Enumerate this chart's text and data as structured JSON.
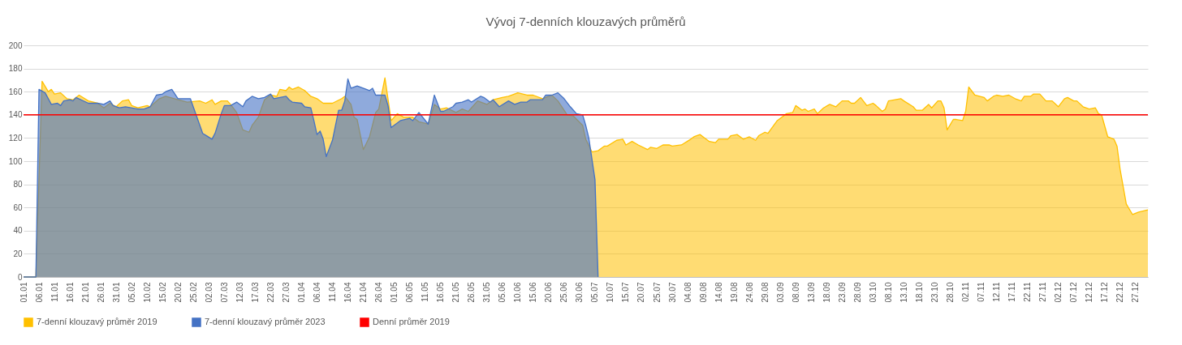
{
  "chart_data": {
    "type": "area",
    "title": "Vývoj 7-denních klouzavých průměrů",
    "xlim": [
      "--01-01",
      "--12-31"
    ],
    "xticks": [
      {
        "value": "--01-01",
        "label": "01.01"
      },
      {
        "value": "--01-06",
        "label": "06.01"
      },
      {
        "value": "--01-11",
        "label": "11.01"
      },
      {
        "value": "--01-16",
        "label": "16.01"
      },
      {
        "value": "--01-21",
        "label": "21.01"
      },
      {
        "value": "--01-26",
        "label": "26.01"
      },
      {
        "value": "--01-31",
        "label": "31.01"
      },
      {
        "value": "--02-05",
        "label": "05.02"
      },
      {
        "value": "--02-10",
        "label": "10.02"
      },
      {
        "value": "--02-15",
        "label": "15.02"
      },
      {
        "value": "--02-20",
        "label": "20.02"
      },
      {
        "value": "--02-25",
        "label": "25.02"
      },
      {
        "value": "--03-02",
        "label": "02.03"
      },
      {
        "value": "--03-07",
        "label": "07.03"
      },
      {
        "value": "--03-12",
        "label": "12.03"
      },
      {
        "value": "--03-17",
        "label": "17.03"
      },
      {
        "value": "--03-22",
        "label": "22.03"
      },
      {
        "value": "--03-27",
        "label": "27.03"
      },
      {
        "value": "--04-01",
        "label": "01.04"
      },
      {
        "value": "--04-06",
        "label": "06.04"
      },
      {
        "value": "--04-11",
        "label": "11.04"
      },
      {
        "value": "--04-16",
        "label": "16.04"
      },
      {
        "value": "--04-21",
        "label": "21.04"
      },
      {
        "value": "--04-26",
        "label": "26.04"
      },
      {
        "value": "--05-01",
        "label": "01.05"
      },
      {
        "value": "--05-06",
        "label": "06.05"
      },
      {
        "value": "--05-11",
        "label": "11.05"
      },
      {
        "value": "--05-16",
        "label": "16.05"
      },
      {
        "value": "--05-21",
        "label": "21.05"
      },
      {
        "value": "--05-26",
        "label": "26.05"
      },
      {
        "value": "--05-31",
        "label": "31.05"
      },
      {
        "value": "--06-05",
        "label": "05.06"
      },
      {
        "value": "--06-10",
        "label": "10.06"
      },
      {
        "value": "--06-15",
        "label": "15.06"
      },
      {
        "value": "--06-20",
        "label": "20.06"
      },
      {
        "value": "--06-25",
        "label": "25.06"
      },
      {
        "value": "--06-30",
        "label": "30.06"
      },
      {
        "value": "--07-05",
        "label": "05.07"
      },
      {
        "value": "--07-10",
        "label": "10.07"
      },
      {
        "value": "--07-15",
        "label": "15.07"
      },
      {
        "value": "--07-20",
        "label": "20.07"
      },
      {
        "value": "--07-25",
        "label": "25.07"
      },
      {
        "value": "--07-30",
        "label": "30.07"
      },
      {
        "value": "--08-04",
        "label": "04.08"
      },
      {
        "value": "--08-09",
        "label": "09.08"
      },
      {
        "value": "--08-14",
        "label": "14.08"
      },
      {
        "value": "--08-19",
        "label": "19.08"
      },
      {
        "value": "--08-24",
        "label": "24.08"
      },
      {
        "value": "--08-29",
        "label": "29.08"
      },
      {
        "value": "--09-03",
        "label": "03.09"
      },
      {
        "value": "--09-08",
        "label": "08.09"
      },
      {
        "value": "--09-13",
        "label": "13.09"
      },
      {
        "value": "--09-18",
        "label": "18.09"
      },
      {
        "value": "--09-23",
        "label": "23.09"
      },
      {
        "value": "--09-28",
        "label": "28.09"
      },
      {
        "value": "--10-03",
        "label": "03.10"
      },
      {
        "value": "--10-08",
        "label": "08.10"
      },
      {
        "value": "--10-13",
        "label": "13.10"
      },
      {
        "value": "--10-18",
        "label": "18.10"
      },
      {
        "value": "--10-23",
        "label": "23.10"
      },
      {
        "value": "--10-28",
        "label": "28.10"
      },
      {
        "value": "--11-02",
        "label": "02.11"
      },
      {
        "value": "--11-07",
        "label": "07.11"
      },
      {
        "value": "--11-12",
        "label": "12.11"
      },
      {
        "value": "--11-17",
        "label": "17.11"
      },
      {
        "value": "--11-22",
        "label": "22.11"
      },
      {
        "value": "--11-27",
        "label": "27.11"
      },
      {
        "value": "--12-02",
        "label": "02.12"
      },
      {
        "value": "--12-07",
        "label": "07.12"
      },
      {
        "value": "--12-12",
        "label": "12.12"
      },
      {
        "value": "--12-17",
        "label": "17.12"
      },
      {
        "value": "--12-22",
        "label": "22.12"
      },
      {
        "value": "--12-27",
        "label": "27.12"
      }
    ],
    "ylim": [
      0,
      200
    ],
    "yticks": [
      0,
      20,
      40,
      60,
      80,
      100,
      120,
      140,
      160,
      180,
      200
    ],
    "grid": "y",
    "legend": "bottom",
    "series": [
      {
        "name": "7-denní klouzavý průměr 2019",
        "color": "#ffc000",
        "x": [
          "--01-01",
          "--01-05",
          "--01-07",
          "--01-09",
          "--01-10",
          "--01-11",
          "--01-13",
          "--01-15",
          "--01-17",
          "--01-19",
          "--01-22",
          "--01-25",
          "--01-27",
          "--01-29",
          "--01-31",
          "--02-02",
          "--02-04",
          "--02-05",
          "--02-07",
          "--02-10",
          "--02-11",
          "--02-14",
          "--02-16",
          "--02-20",
          "--02-23",
          "--02-27",
          "--03-01",
          "--03-03",
          "--03-04",
          "--03-06",
          "--03-08",
          "--03-09",
          "--03-11",
          "--03-13",
          "--03-15",
          "--03-16",
          "--03-18",
          "--03-20",
          "--03-22",
          "--03-24",
          "--03-25",
          "--03-27",
          "--03-28",
          "--03-29",
          "--03-31",
          "--04-02",
          "--04-04",
          "--04-06",
          "--04-08",
          "--04-11",
          "--04-14",
          "--04-15",
          "--04-17",
          "--04-18",
          "--04-19",
          "--04-21",
          "--04-23",
          "--04-25",
          "--04-26",
          "--04-28",
          "--04-30",
          "--05-02",
          "--05-04",
          "--05-07",
          "--05-09",
          "--05-12",
          "--05-14",
          "--05-16",
          "--05-18",
          "--05-21",
          "--05-23",
          "--05-25",
          "--05-28",
          "--05-31",
          "--06-02",
          "--06-05",
          "--06-07",
          "--06-10",
          "--06-13",
          "--06-15",
          "--06-18",
          "--06-21",
          "--06-23",
          "--06-26",
          "--06-28",
          "--07-01",
          "--07-02",
          "--07-04",
          "--07-06",
          "--07-08",
          "--07-09",
          "--07-12",
          "--07-14",
          "--07-15",
          "--07-17",
          "--07-19",
          "--07-22",
          "--07-23",
          "--07-25",
          "--07-27",
          "--07-29",
          "--07-30",
          "--08-02",
          "--08-05",
          "--08-06",
          "--08-08",
          "--08-09",
          "--08-11",
          "--08-13",
          "--08-14",
          "--08-17",
          "--08-18",
          "--08-20",
          "--08-22",
          "--08-24",
          "--08-26",
          "--08-27",
          "--08-29",
          "--08-30",
          "--09-02",
          "--09-05",
          "--09-07",
          "--09-08",
          "--09-10",
          "--09-11",
          "--09-12",
          "--09-14",
          "--09-15",
          "--09-17",
          "--09-19",
          "--09-21",
          "--09-23",
          "--09-25",
          "--09-26",
          "--09-27",
          "--09-29",
          "--10-01",
          "--10-03",
          "--10-04",
          "--10-06",
          "--10-07",
          "--10-08",
          "--10-12",
          "--10-13",
          "--10-16",
          "--10-17",
          "--10-19",
          "--10-21",
          "--10-22",
          "--10-24",
          "--10-25",
          "--10-26",
          "--10-27",
          "--10-29",
          "--10-30",
          "--11-01",
          "--11-02",
          "--11-03",
          "--11-05",
          "--11-08",
          "--11-09",
          "--11-11",
          "--11-12",
          "--11-14",
          "--11-16",
          "--11-18",
          "--11-20",
          "--11-21",
          "--11-23",
          "--11-24",
          "--11-26",
          "--11-28",
          "--11-30",
          "--12-02",
          "--12-04",
          "--12-05",
          "--12-07",
          "--12-08",
          "--12-10",
          "--12-12",
          "--12-14",
          "--12-15",
          "--12-16",
          "--12-18",
          "--12-20",
          "--12-21",
          "--12-22",
          "--12-24",
          "--12-26",
          "--12-28",
          "--12-31"
        ],
        "values": [
          0,
          0,
          169,
          160,
          162,
          158,
          159,
          154,
          153,
          157,
          152,
          150,
          146,
          150,
          147,
          152,
          153,
          148,
          146,
          148,
          147,
          154,
          156,
          153,
          151,
          152,
          150,
          153,
          149,
          152,
          152,
          149,
          142,
          127,
          125,
          131,
          138,
          153,
          157,
          156,
          162,
          161,
          164,
          162,
          164,
          161,
          156,
          154,
          150,
          150,
          154,
          156,
          149,
          138,
          136,
          110,
          121,
          142,
          145,
          172,
          135,
          141,
          138,
          138,
          134,
          132,
          149,
          145,
          146,
          142,
          145,
          143,
          152,
          149,
          153,
          155,
          156,
          159,
          157,
          157,
          154,
          157,
          152,
          140,
          139,
          131,
          119,
          108,
          109,
          113,
          113,
          118,
          119,
          114,
          117,
          114,
          110,
          112,
          111,
          114,
          114,
          113,
          114,
          119,
          121,
          123,
          121,
          117,
          116,
          119,
          119,
          122,
          123,
          119,
          121,
          118,
          122,
          125,
          124,
          135,
          141,
          142,
          148,
          144,
          145,
          143,
          145,
          141,
          146,
          149,
          147,
          152,
          152,
          150,
          150,
          155,
          148,
          150,
          148,
          143,
          145,
          152,
          154,
          152,
          147,
          144,
          144,
          149,
          146,
          152,
          152,
          146,
          127,
          136,
          136,
          135,
          143,
          164,
          157,
          155,
          152,
          156,
          157,
          156,
          157,
          154,
          152,
          156,
          156,
          158,
          158,
          152,
          152,
          147,
          154,
          155,
          152,
          152,
          147,
          145,
          146,
          141,
          140,
          121,
          119,
          113,
          93,
          63,
          54,
          56,
          58
        ]
      },
      {
        "name": "7-denní klouzavý průměr 2023",
        "color": "#4472c4",
        "x": [
          "--01-01",
          "--01-05",
          "--01-06",
          "--01-08",
          "--01-10",
          "--01-12",
          "--01-13",
          "--01-14",
          "--01-16",
          "--01-17",
          "--01-18",
          "--01-22",
          "--01-25",
          "--01-27",
          "--01-29",
          "--01-30",
          "--02-01",
          "--02-03",
          "--02-07",
          "--02-09",
          "--02-11",
          "--02-13",
          "--02-15",
          "--02-16",
          "--02-18",
          "--02-20",
          "--02-24",
          "--02-26",
          "--02-28",
          "--03-03",
          "--03-04",
          "--03-06",
          "--03-07",
          "--03-09",
          "--03-11",
          "--03-13",
          "--03-14",
          "--03-16",
          "--03-18",
          "--03-20",
          "--03-22",
          "--03-23",
          "--03-27",
          "--03-28",
          "--03-29",
          "--04-01",
          "--04-02",
          "--04-04",
          "--04-05",
          "--04-06",
          "--04-07",
          "--04-08",
          "--04-09",
          "--04-11",
          "--04-13",
          "--04-14",
          "--04-15",
          "--04-16",
          "--04-17",
          "--04-19",
          "--04-22",
          "--04-23",
          "--04-24",
          "--04-25",
          "--04-28",
          "--04-29",
          "--04-30",
          "--05-03",
          "--05-06",
          "--05-07",
          "--05-09",
          "--05-12",
          "--05-14",
          "--05-16",
          "--05-17",
          "--05-20",
          "--05-21",
          "--05-23",
          "--05-25",
          "--05-26",
          "--05-29",
          "--05-30",
          "--06-01",
          "--06-02",
          "--06-04",
          "--06-07",
          "--06-09",
          "--06-11",
          "--06-13",
          "--06-14",
          "--06-18",
          "--06-19",
          "--06-21",
          "--06-23",
          "--06-25",
          "--06-27",
          "--06-29",
          "--07-01",
          "--07-02",
          "--07-03",
          "--07-05",
          "--07-06"
        ],
        "values": [
          0,
          0,
          162,
          159,
          149,
          150,
          148,
          152,
          153,
          152,
          155,
          150,
          150,
          149,
          152,
          148,
          146,
          147,
          145,
          145,
          147,
          157,
          158,
          160,
          162,
          154,
          154,
          139,
          124,
          119,
          124,
          141,
          148,
          148,
          151,
          147,
          152,
          156,
          154,
          155,
          158,
          154,
          156,
          153,
          151,
          150,
          147,
          146,
          135,
          123,
          126,
          119,
          104,
          118,
          144,
          144,
          152,
          171,
          163,
          165,
          162,
          161,
          163,
          157,
          157,
          148,
          129,
          135,
          137,
          135,
          142,
          132,
          157,
          143,
          143,
          147,
          150,
          151,
          153,
          151,
          156,
          155,
          151,
          153,
          147,
          152,
          149,
          151,
          151,
          153,
          153,
          157,
          157,
          159,
          154,
          147,
          141,
          140,
          131,
          120,
          84,
          0
        ]
      }
    ],
    "ref_lines": [
      {
        "axis": "y",
        "value": 140,
        "label": "Denní průměr 2019",
        "color": "#ff0000"
      }
    ]
  }
}
